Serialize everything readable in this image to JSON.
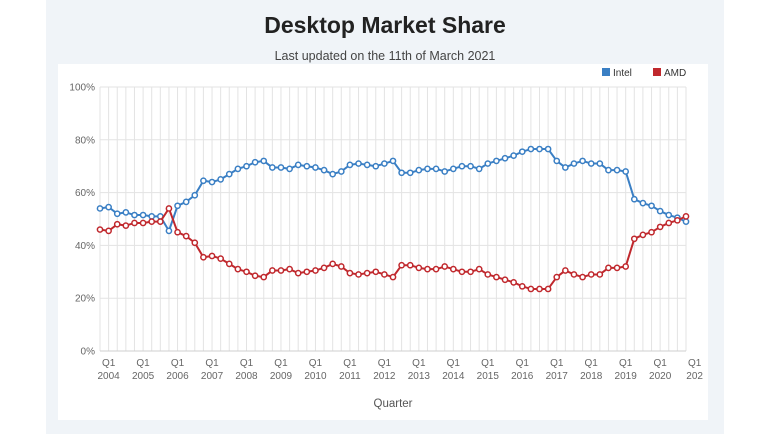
{
  "page": {
    "title": "Desktop Market Share",
    "subtitle": "Last updated on the 11th of March 2021"
  },
  "chart_data": {
    "type": "line",
    "title": "Desktop Market Share",
    "subtitle": "Last updated on the 11th of March 2021",
    "xlabel": "Quarter",
    "ylabel": "",
    "ylim": [
      0,
      100
    ],
    "yticks": [
      "0%",
      "20%",
      "40%",
      "60%",
      "80%",
      "100%"
    ],
    "grid": true,
    "legend_position": "top-right",
    "x_axis_labels": [
      {
        "q": "Q1",
        "year": "2004"
      },
      {
        "q": "Q1",
        "year": "2005"
      },
      {
        "q": "Q1",
        "year": "2006"
      },
      {
        "q": "Q1",
        "year": "2007"
      },
      {
        "q": "Q1",
        "year": "2008"
      },
      {
        "q": "Q1",
        "year": "2009"
      },
      {
        "q": "Q1",
        "year": "2010"
      },
      {
        "q": "Q1",
        "year": "2011"
      },
      {
        "q": "Q1",
        "year": "2012"
      },
      {
        "q": "Q1",
        "year": "2013"
      },
      {
        "q": "Q1",
        "year": "2014"
      },
      {
        "q": "Q1",
        "year": "2015"
      },
      {
        "q": "Q1",
        "year": "2016"
      },
      {
        "q": "Q1",
        "year": "2017"
      },
      {
        "q": "Q1",
        "year": "2018"
      },
      {
        "q": "Q1",
        "year": "2019"
      },
      {
        "q": "Q1",
        "year": "2020"
      },
      {
        "q": "Q1",
        "year": "202"
      }
    ],
    "x_start": "2004 Q1",
    "series": [
      {
        "name": "Intel",
        "color": "#3a7fc4",
        "values": [
          54,
          54.5,
          52,
          52.5,
          51.5,
          51.5,
          51,
          51,
          45.5,
          55,
          56.5,
          59,
          64.5,
          64,
          65,
          67,
          69,
          70,
          71.5,
          72,
          69.5,
          69.5,
          69,
          70.5,
          70,
          69.5,
          68.5,
          67,
          68,
          70.5,
          71,
          70.5,
          70,
          71,
          72,
          67.5,
          67.5,
          68.5,
          69,
          69,
          68,
          69,
          70,
          70,
          69,
          71,
          72,
          73,
          74,
          75.5,
          76.5,
          76.5,
          76.5,
          72,
          69.5,
          71,
          72,
          71,
          71,
          68.5,
          68.5,
          68,
          57.5,
          56,
          55,
          53,
          51.5,
          50.5,
          49
        ]
      },
      {
        "name": "AMD",
        "color": "#c0282d",
        "values": [
          46,
          45.5,
          48,
          47.5,
          48.5,
          48.5,
          49,
          49,
          54,
          45,
          43.5,
          41,
          35.5,
          36,
          35,
          33,
          31,
          30,
          28.5,
          28,
          30.5,
          30.5,
          31,
          29.5,
          30,
          30.5,
          31.5,
          33,
          32,
          29.5,
          29,
          29.5,
          30,
          29,
          28,
          32.5,
          32.5,
          31.5,
          31,
          31,
          32,
          31,
          30,
          30,
          31,
          29,
          28,
          27,
          26,
          24.5,
          23.5,
          23.5,
          23.5,
          28,
          30.5,
          29,
          28,
          29,
          29,
          31.5,
          31.5,
          32,
          42.5,
          44,
          45,
          47,
          48.5,
          49.5,
          51
        ]
      }
    ]
  }
}
